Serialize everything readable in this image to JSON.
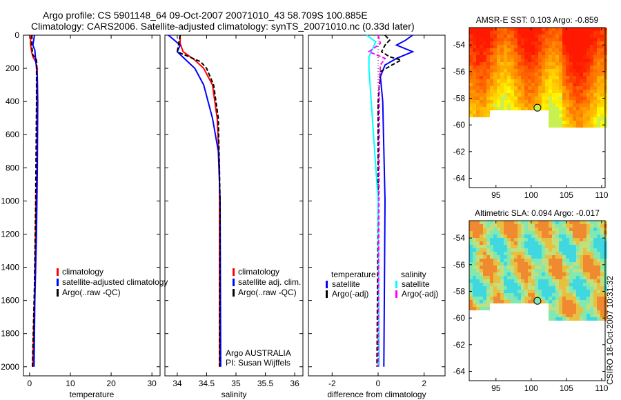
{
  "title_line1": "Argo profile: CS 5901148_64 09-Oct-2007 20071010_43 58.709S 100.885E",
  "title_line2": "Climatology: CARS2006. Satellite-adjusted climatology: synTS_20071010.nc (0.33d later)",
  "side_stamp": "CSIRO 18-Oct-2007 10:31:32",
  "chart_data": [
    {
      "type": "line",
      "name": "temperature",
      "xlabel": "temperature",
      "xlim": [
        -1.5,
        32
      ],
      "ylim": [
        0,
        2055
      ],
      "xticks": [
        0,
        10,
        20,
        30
      ],
      "yticks": [
        0,
        200,
        400,
        600,
        800,
        1000,
        1200,
        1400,
        1600,
        1800,
        2000
      ],
      "legend": [
        "climatology",
        "satellite-adjusted climatology",
        "Argo(..raw -QC)"
      ],
      "series": [
        {
          "name": "climatology",
          "color": "#ff0000",
          "dash": "",
          "depth": [
            0,
            50,
            100,
            130,
            160,
            200,
            300,
            800,
            1000,
            1500,
            2000
          ],
          "values": [
            0.3,
            0.2,
            0.5,
            0.8,
            1.5,
            1.9,
            1.8,
            1.8,
            1.6,
            1.3,
            0.8
          ]
        },
        {
          "name": "satellite-adjusted climatology",
          "color": "#0000ff",
          "dash": "",
          "depth": [
            0,
            30,
            60,
            90,
            150,
            250,
            400,
            800,
            1200,
            1600,
            2000
          ],
          "values": [
            1.2,
            1.0,
            0.8,
            1.3,
            1.5,
            1.9,
            2.0,
            1.9,
            1.7,
            1.3,
            1.1
          ]
        },
        {
          "name": "Argo(..raw -QC)",
          "color": "#000000",
          "dash": "6,3",
          "depth": [
            0,
            60,
            120,
            140,
            170,
            200,
            400,
            1000,
            1500,
            2000
          ],
          "values": [
            0.6,
            0.5,
            0.8,
            1.6,
            1.8,
            1.7,
            1.7,
            1.5,
            1.2,
            0.7
          ]
        }
      ]
    },
    {
      "type": "line",
      "name": "salinity",
      "xlabel": "salinity",
      "xlim": [
        33.79,
        36.14
      ],
      "ylim": [
        0,
        2055
      ],
      "xticks": [
        34,
        34.5,
        35,
        35.5,
        36
      ],
      "legend": [
        "climatology",
        "satellite adj. clim.",
        "Argo(..raw -QC)"
      ],
      "annotation": [
        "Argo AUSTRALIA",
        "PI: Susan Wijffels"
      ],
      "series": [
        {
          "name": "climatology",
          "color": "#ff0000",
          "dash": "",
          "depth": [
            0,
            50,
            100,
            150,
            200,
            300,
            500,
            800,
            2000
          ],
          "values": [
            34.05,
            34.05,
            34.1,
            34.3,
            34.45,
            34.6,
            34.68,
            34.72,
            34.72
          ]
        },
        {
          "name": "satellite adj. clim.",
          "color": "#0000ff",
          "dash": "",
          "depth": [
            0,
            30,
            60,
            100,
            150,
            200,
            300,
            500,
            700,
            1000,
            2000
          ],
          "values": [
            33.85,
            33.95,
            34.05,
            34.0,
            34.15,
            34.3,
            34.45,
            34.6,
            34.7,
            34.73,
            34.74
          ]
        },
        {
          "name": "Argo(..raw -QC)",
          "color": "#000000",
          "dash": "6,3",
          "depth": [
            0,
            100,
            130,
            160,
            200,
            300,
            500,
            1000,
            2000
          ],
          "values": [
            34.05,
            34.0,
            34.2,
            34.4,
            34.5,
            34.62,
            34.7,
            34.73,
            34.72
          ]
        }
      ]
    },
    {
      "type": "line",
      "name": "difference",
      "xlabel": "difference from climatology",
      "xlim": [
        -3.03,
        2.91
      ],
      "ylim": [
        0,
        2055
      ],
      "xticks": [
        -2,
        0,
        2
      ],
      "legend_groups": [
        {
          "title": "temperature",
          "items": [
            "satellite",
            "Argo(-adj)"
          ]
        },
        {
          "title": "salinity",
          "items": [
            "satellite",
            "Argo(-adj)"
          ]
        }
      ],
      "series": [
        {
          "name": "temperature satellite",
          "color": "#0000ff",
          "dash": "",
          "depth": [
            0,
            30,
            60,
            100,
            140,
            180,
            250,
            400,
            1000,
            2000
          ],
          "values": [
            1.5,
            1.2,
            0.8,
            1.5,
            0.8,
            0.3,
            0.1,
            0.2,
            0.3,
            0.25
          ]
        },
        {
          "name": "temperature Argo(-adj)",
          "color": "#000000",
          "dash": "6,3",
          "depth": [
            0,
            30,
            60,
            100,
            130,
            150,
            180,
            220,
            400,
            1000,
            2000
          ],
          "values": [
            0.3,
            0.5,
            0.3,
            0.15,
            0.5,
            1.0,
            0.6,
            0.1,
            0.0,
            0.0,
            -0.05
          ]
        },
        {
          "name": "salinity satellite",
          "color": "#00ffff",
          "dash": "",
          "depth": [
            0,
            40,
            70,
            130,
            200,
            400,
            800,
            1000,
            2000
          ],
          "values": [
            -0.5,
            -0.1,
            -0.2,
            -0.4,
            -0.4,
            -0.3,
            -0.1,
            0.0,
            0.05
          ]
        },
        {
          "name": "salinity Argo(-adj)",
          "color": "#ff00ff",
          "dash": "6,3",
          "depth": [
            0,
            50,
            100,
            140,
            180,
            300,
            600,
            2000
          ],
          "values": [
            0.0,
            0.1,
            -0.4,
            0.3,
            0.1,
            0.05,
            0.05,
            0.0
          ]
        }
      ]
    },
    {
      "type": "heatmap",
      "name": "sst-map",
      "title": "AMSR-E SST: 0.103 Argo: -0.859",
      "xlim": [
        91.2,
        110.5
      ],
      "ylim": [
        -64.7,
        -52.7
      ],
      "xticks": [
        95,
        100,
        105,
        110
      ],
      "yticks": [
        -54,
        -56,
        -58,
        -60,
        -62,
        -64
      ],
      "marker": {
        "lon": 100.885,
        "lat": -58.709
      }
    },
    {
      "type": "heatmap",
      "name": "sla-map",
      "title": "Altimetric SLA: 0.094 Argo: -0.017",
      "xlim": [
        91.2,
        110.5
      ],
      "ylim": [
        -64.7,
        -52.7
      ],
      "xticks": [
        95,
        100,
        105,
        110
      ],
      "yticks": [
        -54,
        -56,
        -58,
        -60,
        -62,
        -64
      ],
      "marker": {
        "lon": 100.885,
        "lat": -58.709
      }
    }
  ]
}
